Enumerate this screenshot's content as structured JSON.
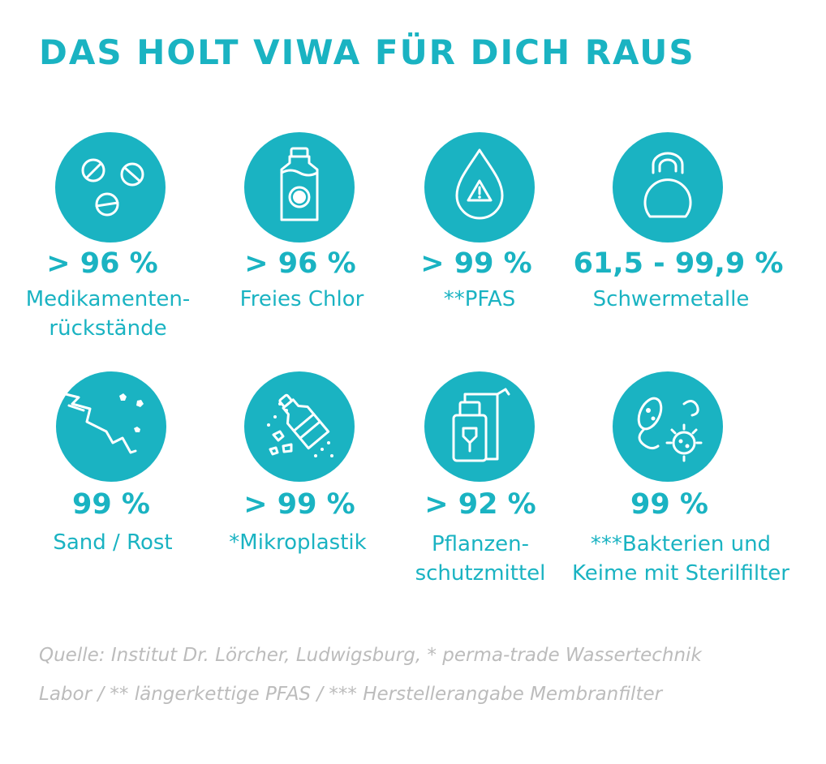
{
  "title": "DAS HOLT VIWA FÜR DICH RAUS",
  "colors": {
    "accent": "#1ab3c2",
    "source_text": "#bcbcbc",
    "icon": "#ffffff"
  },
  "items": [
    {
      "icon": "pills-icon",
      "value": "> 96 %",
      "label_lines": [
        "Medikamenten-",
        "rückstände"
      ]
    },
    {
      "icon": "chlorine-bottle-icon",
      "value": "> 96 %",
      "label_lines": [
        "Freies Chlor"
      ]
    },
    {
      "icon": "water-drop-warning-icon",
      "value": "> 99 %",
      "label_lines": [
        "**PFAS"
      ]
    },
    {
      "icon": "kettlebell-icon",
      "value": "61,5 - 99,9 %",
      "label_lines": [
        "Schwermetalle"
      ]
    },
    {
      "icon": "sand-rust-icon",
      "value": "99 %",
      "label_lines": [
        "Sand / Rost"
      ]
    },
    {
      "icon": "microplastic-bottle-icon",
      "value": "> 99 %",
      "label_lines": [
        "*Mikroplastik"
      ]
    },
    {
      "icon": "pesticide-sprayer-icon",
      "value": "> 92 %",
      "label_lines": [
        "Pflanzen-",
        "schutzmittel"
      ]
    },
    {
      "icon": "bacteria-icon",
      "value": "99 %",
      "label_lines": [
        "***Bakterien und",
        "Keime mit Sterilfilter"
      ]
    }
  ],
  "source_lines": [
    "Quelle: Institut Dr. Lörcher, Ludwigsburg, * perma-trade Wassertechnik",
    "Labor / ** längerkettige PFAS / *** Herstellerangabe Membranfilter"
  ]
}
